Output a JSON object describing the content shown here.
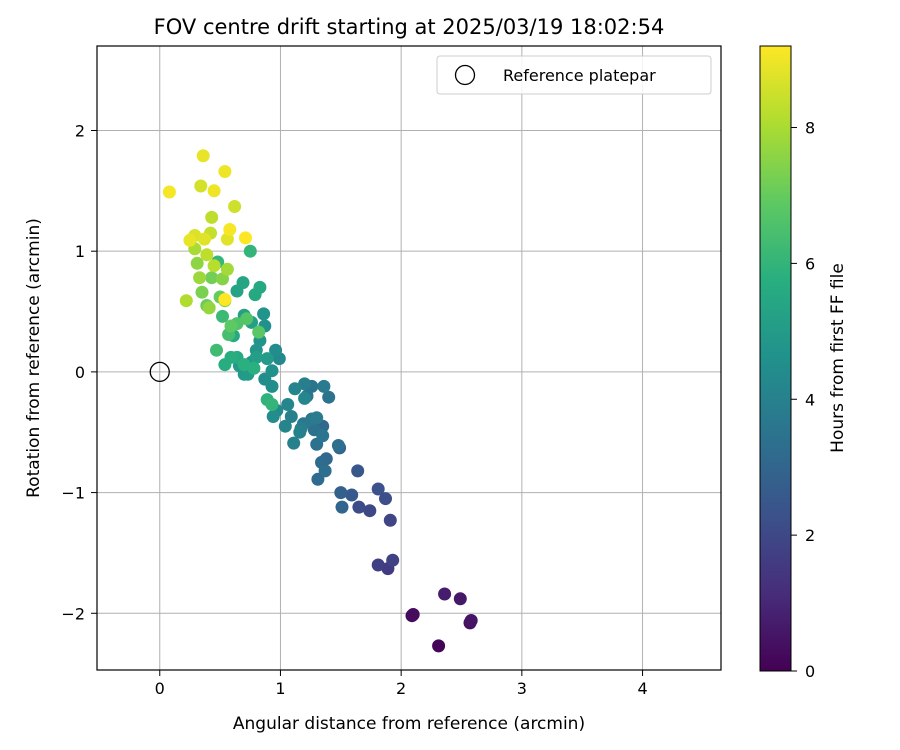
{
  "chart_data": {
    "type": "scatter",
    "title": "FOV centre drift starting at 2025/03/19 18:02:54",
    "xlabel": "Angular distance from reference (arcmin)",
    "ylabel": "Rotation from reference (arcmin)",
    "xlim": [
      -0.52,
      4.65
    ],
    "ylim": [
      -2.47,
      2.7
    ],
    "xticks": [
      0,
      1,
      2,
      3,
      4
    ],
    "yticks": [
      -2,
      -1,
      0,
      1,
      2
    ],
    "xtick_labels": [
      "0",
      "1",
      "2",
      "3",
      "4"
    ],
    "ytick_labels": [
      "−2",
      "−1",
      "0",
      "1",
      "2"
    ],
    "grid": true,
    "colorscale": "viridis",
    "legend": {
      "placement": "top-right",
      "entries": [
        {
          "label": "Reference platepar",
          "marker": "open-circle"
        }
      ]
    },
    "reference_point": {
      "x": 0,
      "y": 0
    },
    "colorbar": {
      "label": "Hours from first FF file",
      "min": 0,
      "max": 9.2,
      "ticks": [
        0,
        2,
        4,
        6,
        8
      ],
      "tick_labels": [
        "0",
        "2",
        "4",
        "6",
        "8"
      ]
    },
    "points": [
      {
        "x": 2.31,
        "y": -2.27,
        "c": 0.1
      },
      {
        "x": 2.09,
        "y": -2.02,
        "c": 0.2
      },
      {
        "x": 2.1,
        "y": -2.01,
        "c": 0.3
      },
      {
        "x": 2.57,
        "y": -2.08,
        "c": 0.4
      },
      {
        "x": 2.58,
        "y": -2.06,
        "c": 0.5
      },
      {
        "x": 2.49,
        "y": -1.88,
        "c": 0.6
      },
      {
        "x": 2.36,
        "y": -1.84,
        "c": 0.7
      },
      {
        "x": 1.89,
        "y": -1.63,
        "c": 1.6
      },
      {
        "x": 1.81,
        "y": -1.6,
        "c": 1.7
      },
      {
        "x": 1.93,
        "y": -1.56,
        "c": 1.8
      },
      {
        "x": 1.91,
        "y": -1.23,
        "c": 1.9
      },
      {
        "x": 1.74,
        "y": -1.15,
        "c": 2.0
      },
      {
        "x": 1.65,
        "y": -1.12,
        "c": 2.1
      },
      {
        "x": 1.87,
        "y": -1.05,
        "c": 2.2
      },
      {
        "x": 1.81,
        "y": -0.97,
        "c": 2.3
      },
      {
        "x": 1.64,
        "y": -0.82,
        "c": 2.5
      },
      {
        "x": 1.59,
        "y": -1.02,
        "c": 2.6
      },
      {
        "x": 1.5,
        "y": -1.0,
        "c": 2.8
      },
      {
        "x": 1.51,
        "y": -1.12,
        "c": 3.0
      },
      {
        "x": 1.49,
        "y": -0.63,
        "c": 3.0
      },
      {
        "x": 1.38,
        "y": -0.72,
        "c": 3.1
      },
      {
        "x": 1.35,
        "y": -0.45,
        "c": 3.1
      },
      {
        "x": 1.34,
        "y": -0.75,
        "c": 3.2
      },
      {
        "x": 1.31,
        "y": -0.89,
        "c": 3.2
      },
      {
        "x": 1.37,
        "y": -0.82,
        "c": 3.3
      },
      {
        "x": 1.48,
        "y": -0.61,
        "c": 3.3
      },
      {
        "x": 1.3,
        "y": -0.6,
        "c": 3.4
      },
      {
        "x": 1.28,
        "y": -0.48,
        "c": 3.4
      },
      {
        "x": 1.4,
        "y": -0.21,
        "c": 3.5
      },
      {
        "x": 1.26,
        "y": -0.12,
        "c": 3.5
      },
      {
        "x": 1.22,
        "y": -0.2,
        "c": 3.6
      },
      {
        "x": 1.35,
        "y": -0.53,
        "c": 3.6
      },
      {
        "x": 1.26,
        "y": -0.39,
        "c": 3.7
      },
      {
        "x": 1.19,
        "y": -0.43,
        "c": 3.7
      },
      {
        "x": 1.3,
        "y": -0.38,
        "c": 3.8
      },
      {
        "x": 1.36,
        "y": -0.12,
        "c": 3.8
      },
      {
        "x": 1.2,
        "y": -0.1,
        "c": 3.9
      },
      {
        "x": 1.17,
        "y": -0.47,
        "c": 3.9
      },
      {
        "x": 1.11,
        "y": -0.59,
        "c": 4.0
      },
      {
        "x": 1.16,
        "y": -0.5,
        "c": 4.0
      },
      {
        "x": 1.09,
        "y": -0.37,
        "c": 4.0
      },
      {
        "x": 1.04,
        "y": -0.45,
        "c": 4.1
      },
      {
        "x": 1.12,
        "y": -0.14,
        "c": 4.1
      },
      {
        "x": 1.2,
        "y": -0.22,
        "c": 4.2
      },
      {
        "x": 1.06,
        "y": -0.27,
        "c": 4.2
      },
      {
        "x": 0.99,
        "y": 0.11,
        "c": 4.3
      },
      {
        "x": 0.97,
        "y": -0.32,
        "c": 4.3
      },
      {
        "x": 0.94,
        "y": -0.37,
        "c": 4.4
      },
      {
        "x": 0.96,
        "y": 0.18,
        "c": 4.4
      },
      {
        "x": 0.87,
        "y": -0.06,
        "c": 4.5
      },
      {
        "x": 0.93,
        "y": -0.12,
        "c": 4.5
      },
      {
        "x": 0.93,
        "y": 0.01,
        "c": 4.6
      },
      {
        "x": 0.87,
        "y": 0.38,
        "c": 4.6
      },
      {
        "x": 0.86,
        "y": 0.48,
        "c": 4.7
      },
      {
        "x": 0.83,
        "y": 0.26,
        "c": 4.7
      },
      {
        "x": 0.8,
        "y": 0.18,
        "c": 4.8
      },
      {
        "x": 0.76,
        "y": 0.08,
        "c": 4.8
      },
      {
        "x": 0.7,
        "y": -0.02,
        "c": 4.9
      },
      {
        "x": 0.66,
        "y": 0.05,
        "c": 4.9
      },
      {
        "x": 0.73,
        "y": -0.02,
        "c": 5.0
      },
      {
        "x": 0.89,
        "y": 0.11,
        "c": 5.0
      },
      {
        "x": 0.8,
        "y": 0.12,
        "c": 5.1
      },
      {
        "x": 0.76,
        "y": 0.41,
        "c": 5.1
      },
      {
        "x": 0.7,
        "y": 0.47,
        "c": 5.2
      },
      {
        "x": 0.64,
        "y": 0.67,
        "c": 5.3
      },
      {
        "x": 0.69,
        "y": 0.74,
        "c": 5.4
      },
      {
        "x": 0.83,
        "y": 0.7,
        "c": 5.5
      },
      {
        "x": 0.79,
        "y": 0.64,
        "c": 5.5
      },
      {
        "x": 0.61,
        "y": 0.3,
        "c": 5.6
      },
      {
        "x": 0.64,
        "y": 0.12,
        "c": 5.6
      },
      {
        "x": 0.59,
        "y": 0.12,
        "c": 5.7
      },
      {
        "x": 0.54,
        "y": 0.06,
        "c": 5.7
      },
      {
        "x": 0.7,
        "y": 0.06,
        "c": 5.8
      },
      {
        "x": 0.78,
        "y": 0.03,
        "c": 5.8
      },
      {
        "x": 0.89,
        "y": -0.23,
        "c": 5.9
      },
      {
        "x": 0.93,
        "y": -0.27,
        "c": 6.0
      },
      {
        "x": 0.75,
        "y": 1.0,
        "c": 6.0
      },
      {
        "x": 0.48,
        "y": 0.91,
        "c": 6.1
      },
      {
        "x": 0.52,
        "y": 0.46,
        "c": 6.2
      },
      {
        "x": 0.47,
        "y": 0.18,
        "c": 6.3
      },
      {
        "x": 0.57,
        "y": 0.31,
        "c": 6.4
      },
      {
        "x": 0.64,
        "y": 0.4,
        "c": 6.6
      },
      {
        "x": 0.72,
        "y": 0.44,
        "c": 6.7
      },
      {
        "x": 0.82,
        "y": 0.33,
        "c": 6.8
      },
      {
        "x": 0.59,
        "y": 0.38,
        "c": 6.9
      },
      {
        "x": 0.5,
        "y": 0.62,
        "c": 7.0
      },
      {
        "x": 0.39,
        "y": 0.55,
        "c": 7.1
      },
      {
        "x": 0.43,
        "y": 0.78,
        "c": 7.2
      },
      {
        "x": 0.35,
        "y": 0.66,
        "c": 7.3
      },
      {
        "x": 0.54,
        "y": 0.59,
        "c": 7.4
      },
      {
        "x": 0.52,
        "y": 0.77,
        "c": 7.5
      },
      {
        "x": 0.31,
        "y": 0.9,
        "c": 7.6
      },
      {
        "x": 0.41,
        "y": 0.53,
        "c": 7.7
      },
      {
        "x": 0.33,
        "y": 0.78,
        "c": 7.8
      },
      {
        "x": 0.56,
        "y": 0.85,
        "c": 7.9
      },
      {
        "x": 0.29,
        "y": 1.02,
        "c": 8.0
      },
      {
        "x": 0.22,
        "y": 0.59,
        "c": 8.1
      },
      {
        "x": 0.45,
        "y": 0.88,
        "c": 8.2
      },
      {
        "x": 0.39,
        "y": 0.97,
        "c": 8.3
      },
      {
        "x": 0.43,
        "y": 1.28,
        "c": 8.3
      },
      {
        "x": 0.42,
        "y": 1.15,
        "c": 8.4
      },
      {
        "x": 0.62,
        "y": 1.37,
        "c": 8.5
      },
      {
        "x": 0.34,
        "y": 1.54,
        "c": 8.6
      },
      {
        "x": 0.29,
        "y": 1.13,
        "c": 8.7
      },
      {
        "x": 0.37,
        "y": 1.1,
        "c": 8.8
      },
      {
        "x": 0.56,
        "y": 1.1,
        "c": 8.8
      },
      {
        "x": 0.25,
        "y": 1.09,
        "c": 8.9
      },
      {
        "x": 0.36,
        "y": 1.79,
        "c": 8.9
      },
      {
        "x": 0.45,
        "y": 1.5,
        "c": 9.0
      },
      {
        "x": 0.54,
        "y": 1.66,
        "c": 9.0
      },
      {
        "x": 0.08,
        "y": 1.49,
        "c": 9.1
      },
      {
        "x": 0.58,
        "y": 1.18,
        "c": 9.1
      },
      {
        "x": 0.71,
        "y": 1.11,
        "c": 9.2
      },
      {
        "x": 0.54,
        "y": 0.6,
        "c": 9.2
      }
    ]
  }
}
